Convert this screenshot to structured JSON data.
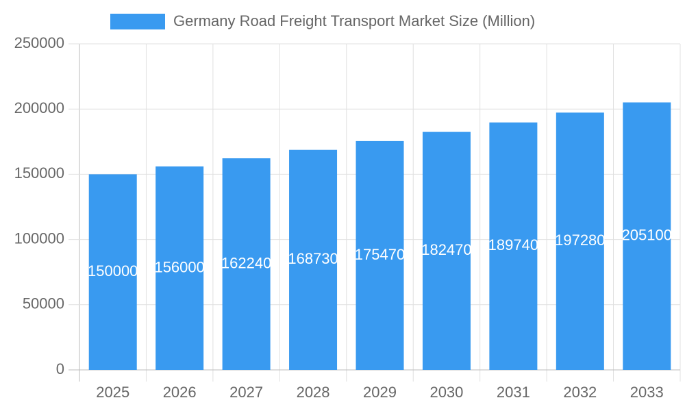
{
  "chart_data": {
    "type": "bar",
    "categories": [
      "2025",
      "2026",
      "2027",
      "2028",
      "2029",
      "2030",
      "2031",
      "2032",
      "2033"
    ],
    "series": [
      {
        "name": "Germany Road Freight Transport Market Size (Million)",
        "color": "#399af0",
        "values": [
          150000,
          156000,
          162240,
          168730,
          175470,
          182470,
          189740,
          197280,
          205100
        ]
      }
    ],
    "ylim": [
      0,
      250000
    ],
    "yticks": [
      0,
      50000,
      100000,
      150000,
      200000,
      250000
    ],
    "grid": true,
    "legend": "top"
  }
}
